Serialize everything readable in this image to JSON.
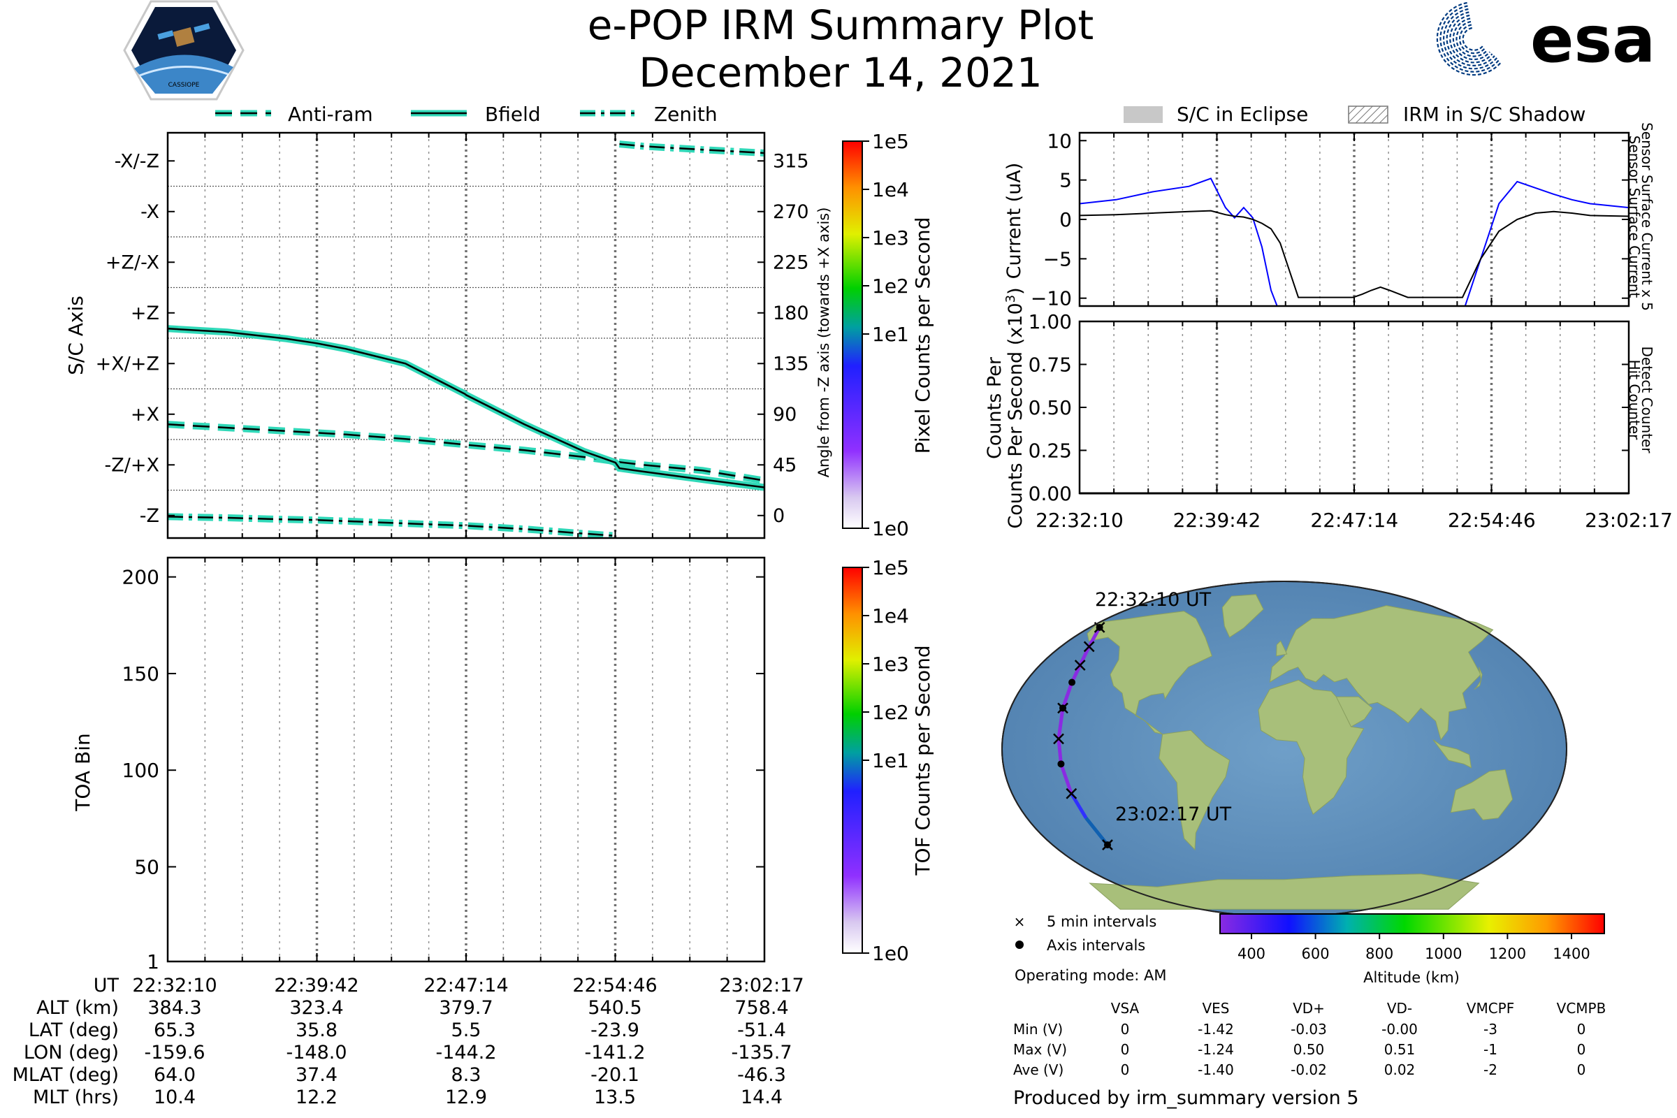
{
  "header": {
    "title": "e-POP IRM Summary Plot",
    "date": "December 14, 2021",
    "esa_logo_text": "esa",
    "cassiope_logo_text": "CASSIOPE"
  },
  "colors": {
    "teal": "#30d8b8",
    "blue": "#0000ff",
    "eclipse_gray": "#c8c8c8"
  },
  "time_ticks": [
    "22:32:10",
    "22:39:42",
    "22:47:14",
    "22:54:46",
    "23:02:17"
  ],
  "top_legend": [
    {
      "label": "Anti-ram",
      "style": "dashed"
    },
    {
      "label": "Bfield",
      "style": "solid"
    },
    {
      "label": "Zenith",
      "style": "dashdot"
    }
  ],
  "right_legend": [
    {
      "label": "S/C in Eclipse",
      "style": "fill"
    },
    {
      "label": "IRM in S/C Shadow",
      "style": "hatch"
    }
  ],
  "chart_data": [
    {
      "id": "sc_axis",
      "type": "line",
      "ylabel": "S/C Axis",
      "ylabel_right": "Angle from -Z axis (towards +X axis)",
      "ylim": [
        -20,
        340
      ],
      "x_ticks": [
        "22:32:10",
        "22:39:42",
        "22:47:14",
        "22:54:46",
        "23:02:17"
      ],
      "axis_labels": [
        "-Z",
        "-Z/+X",
        "+X",
        "+X/+Z",
        "+Z",
        "+Z/-X",
        "-X",
        "-X/-Z"
      ],
      "right_ticks": [
        0,
        45,
        90,
        135,
        180,
        225,
        270,
        315
      ],
      "x_minutes": [
        0,
        3,
        6,
        7.53,
        9,
        12,
        15,
        15.07,
        18,
        21,
        22.6,
        22.8,
        24,
        27,
        30.12
      ],
      "series": [
        {
          "name": "Anti-ram",
          "style": "dashed",
          "values": [
            81,
            78,
            75,
            73.5,
            72,
            68,
            63,
            62.8,
            58,
            52,
            48,
            47.5,
            45,
            40,
            31
          ]
        },
        {
          "name": "Bfield",
          "style": "solid",
          "values": [
            166,
            163,
            157,
            153,
            148,
            135,
            108,
            107,
            81,
            57,
            47,
            42,
            39,
            32,
            25
          ]
        },
        {
          "name": "Zenith",
          "style": "dashdot",
          "values": [
            -1,
            -2,
            -3.5,
            -4,
            -5,
            -7,
            -9,
            -9,
            -12,
            -16,
            -18,
            330,
            328,
            325,
            322
          ]
        }
      ]
    },
    {
      "id": "toa",
      "type": "heatmap",
      "ylabel": "TOA Bin",
      "y_ticks": [
        1,
        50,
        100,
        150,
        200
      ],
      "ylim": [
        1,
        210
      ],
      "x_ticks": [
        "22:32:10",
        "22:39:42",
        "22:47:14",
        "22:54:46",
        "23:02:17"
      ],
      "values": []
    },
    {
      "id": "current",
      "type": "line",
      "ylabel": "Current (uA)",
      "ylabel_right_1": "Sensor Surface Current x 5",
      "ylabel_right_2": "Sensor Surface Current",
      "y_ticks": [
        10,
        5,
        0,
        -5,
        -10
      ],
      "ylim": [
        -11,
        11
      ],
      "x_minutes": [
        0,
        2,
        4,
        6,
        7.2,
        8,
        8.5,
        9,
        9.5,
        10,
        10.5,
        11,
        12,
        13,
        14,
        15,
        15.5,
        16,
        16.5,
        17,
        18,
        19,
        20,
        21,
        22,
        23,
        24,
        25,
        26,
        27,
        28,
        30.12
      ],
      "series": [
        {
          "name": "Sensor Surface Current x 5",
          "color": "#0000ff",
          "values": [
            2.0,
            2.5,
            3.5,
            4.2,
            5.2,
            1.5,
            0.2,
            1.5,
            0.2,
            -3.5,
            -9.0,
            -12,
            null,
            null,
            null,
            null,
            null,
            null,
            null,
            null,
            null,
            null,
            null,
            -12,
            -5.0,
            2.0,
            4.8,
            4.0,
            3.2,
            2.5,
            2.0,
            1.5
          ]
        },
        {
          "name": "Sensor Surface Current",
          "color": "#000000",
          "values": [
            0.5,
            0.6,
            0.8,
            1.0,
            1.1,
            0.6,
            0.4,
            0.3,
            0.0,
            -0.5,
            -1.2,
            -3.0,
            -9.9,
            -9.9,
            -9.9,
            -9.9,
            -9.5,
            -9.0,
            -8.6,
            -9.0,
            -9.9,
            -9.9,
            -9.9,
            -9.9,
            -5.0,
            -1.5,
            0.0,
            0.8,
            1.0,
            0.8,
            0.5,
            0.4
          ]
        }
      ]
    },
    {
      "id": "counts",
      "type": "line",
      "ylabel": "Counts Per Second (x10",
      "ylabel_exp": "3",
      "ylabel_close": ")",
      "ylabel_right_1": "Detect Counter",
      "ylabel_right_2": "Hit Counter",
      "y_ticks": [
        "1.00",
        "0.75",
        "0.50",
        "0.25",
        "0.00"
      ],
      "ylim": [
        0,
        1
      ],
      "x_ticks": [
        "22:32:10",
        "22:39:42",
        "22:47:14",
        "22:54:46",
        "23:02:17"
      ],
      "series": [
        {
          "name": "Detect Counter",
          "color": "#0000ff",
          "values": [
            0,
            0,
            0,
            0,
            0
          ]
        },
        {
          "name": "Hit Counter",
          "color": "#000000",
          "values": [
            0,
            0,
            0,
            0,
            0
          ]
        }
      ]
    }
  ],
  "colorbars": {
    "pixel": {
      "label": "Pixel Counts per Second",
      "ticks": [
        "1e5",
        "1e4",
        "1e3",
        "1e2",
        "1e1",
        "1e0"
      ]
    },
    "tof": {
      "label": "TOF Counts per Second",
      "ticks": [
        "1e5",
        "1e4",
        "1e3",
        "1e2",
        "1e1",
        "1e0"
      ]
    },
    "altitude": {
      "label": "Altitude (km)",
      "ticks": [
        "400",
        "600",
        "800",
        "1000",
        "1200",
        "1400"
      ]
    }
  },
  "ephemeris": {
    "row_labels": [
      "UT",
      "ALT (km)",
      "LAT (deg)",
      "LON (deg)",
      "MLAT (deg)",
      "MLT (hrs)"
    ],
    "columns": [
      [
        "22:32:10",
        "384.3",
        "65.3",
        "-159.6",
        "64.0",
        "10.4"
      ],
      [
        "22:39:42",
        "323.4",
        "35.8",
        "-148.0",
        "37.4",
        "12.2"
      ],
      [
        "22:47:14",
        "379.7",
        "5.5",
        "-144.2",
        "8.3",
        "12.9"
      ],
      [
        "22:54:46",
        "540.5",
        "-23.9",
        "-141.2",
        "-20.1",
        "13.5"
      ],
      [
        "23:02:17",
        "758.4",
        "-51.4",
        "-135.7",
        "-46.3",
        "14.4"
      ]
    ]
  },
  "map": {
    "start_label": "22:32:10 UT",
    "end_label": "23:02:17 UT",
    "track": [
      {
        "lon": -159.6,
        "lat": 65.3
      },
      {
        "lon": -154,
        "lat": 55
      },
      {
        "lon": -150,
        "lat": 45
      },
      {
        "lon": -148.0,
        "lat": 35.8
      },
      {
        "lon": -146,
        "lat": 22
      },
      {
        "lon": -144.2,
        "lat": 5.5
      },
      {
        "lon": -143,
        "lat": -8
      },
      {
        "lon": -141.2,
        "lat": -23.9
      },
      {
        "lon": -139,
        "lat": -37
      },
      {
        "lon": -135.7,
        "lat": -51.4
      }
    ]
  },
  "map_legend": {
    "cross_label": "5 min intervals",
    "dot_label": "Axis intervals",
    "operating_mode": "Operating mode: AM"
  },
  "voltage_table": {
    "headers": [
      "VSA",
      "VES",
      "VD+",
      "VD-",
      "VMCPF",
      "VCMPB"
    ],
    "rows": [
      {
        "label": "Min (V)",
        "values": [
          "0",
          "-1.42",
          "-0.03",
          "-0.00",
          "-3",
          "0"
        ]
      },
      {
        "label": "Max (V)",
        "values": [
          "0",
          "-1.24",
          "0.50",
          "0.51",
          "-1",
          "0"
        ]
      },
      {
        "label": "Ave (V)",
        "values": [
          "0",
          "-1.40",
          "-0.02",
          "0.02",
          "-2",
          "0"
        ]
      }
    ]
  },
  "footer": "Produced by irm_summary version 5"
}
